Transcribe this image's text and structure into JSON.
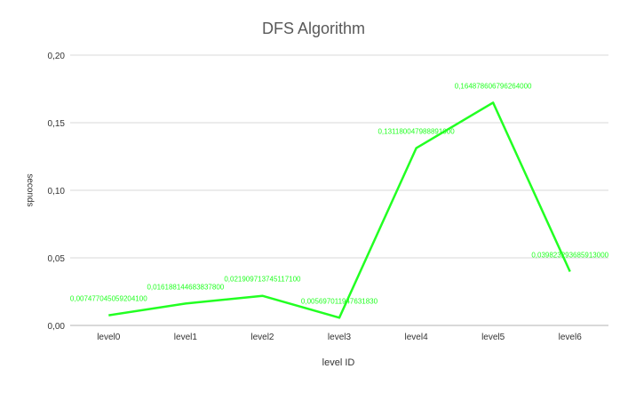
{
  "chart_data": {
    "type": "line",
    "title": "DFS Algorithm",
    "xlabel": "level ID",
    "ylabel": "seconds",
    "categories": [
      "level0",
      "level1",
      "level2",
      "level3",
      "level4",
      "level5",
      "level6"
    ],
    "series": [
      {
        "values": [
          0.0074770450592041,
          0.0161881446838378,
          0.0219097137451171,
          0.00569701194763183,
          0.131180047988891,
          0.164878606796264,
          0.039823293685913
        ],
        "labels": [
          "0,007477045059204100",
          "0,016188144683837800",
          "0,021909713745117100",
          "0,005697011947631830",
          "0,131180047988891000",
          "0,164878606796264000",
          "0,039823293685913000"
        ],
        "color": "#22ff22"
      }
    ],
    "ylim": [
      0,
      0.2
    ],
    "yticks": [
      "0,00",
      "0,05",
      "0,10",
      "0,15",
      "0,20"
    ],
    "grid": true,
    "legend": "none"
  }
}
